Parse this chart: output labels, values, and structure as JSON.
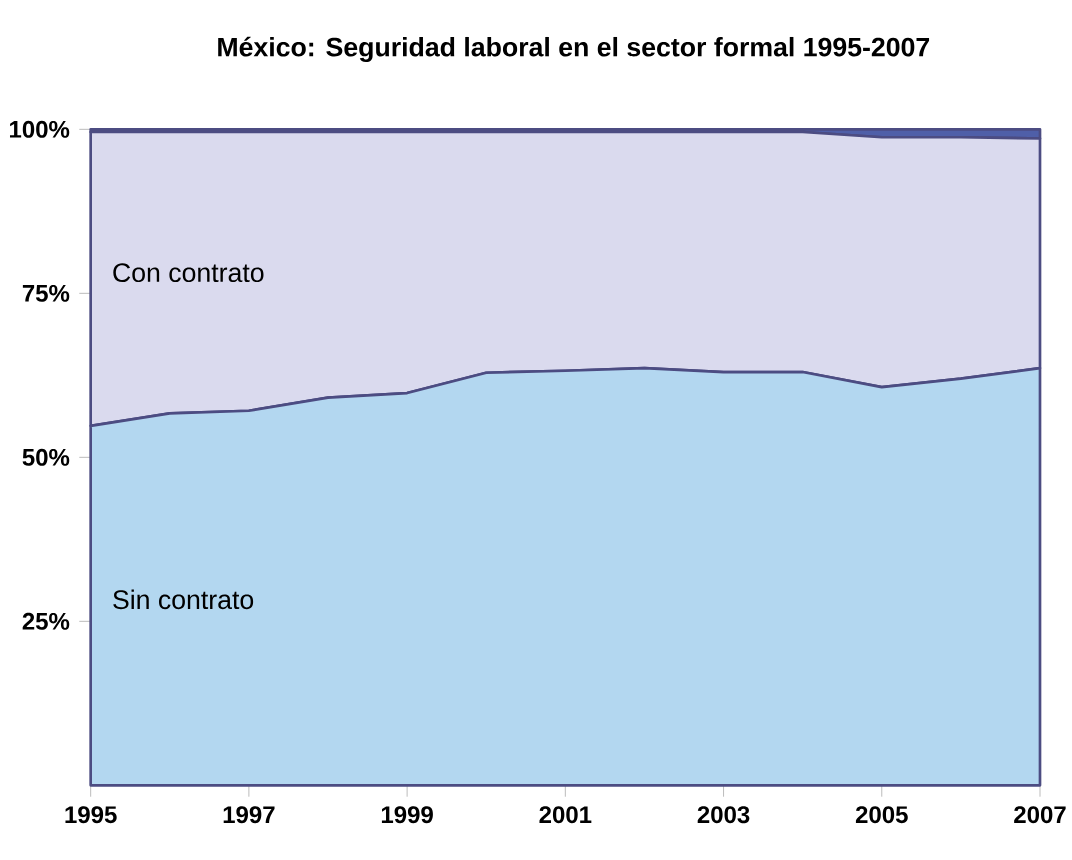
{
  "chart_data": {
    "type": "area",
    "title": "México: Seguridad laboral en el sector formal 1995-2007",
    "x": [
      1995,
      1996,
      1997,
      1998,
      1999,
      2000,
      2001,
      2002,
      2003,
      2004,
      2005,
      2006,
      2007
    ],
    "stacked": true,
    "legend": false,
    "xlim": [
      1995,
      2007
    ],
    "xticks": [
      1995,
      1997,
      1999,
      2001,
      2003,
      2005,
      2007
    ],
    "ylim": [
      0,
      100
    ],
    "yticks": [
      {
        "value": 25,
        "label": "25%"
      },
      {
        "value": 50,
        "label": "50%"
      },
      {
        "value": 75,
        "label": "75%"
      },
      {
        "value": 100,
        "label": "100%"
      }
    ],
    "series": [
      {
        "name": "Sin contrato",
        "color": "#b3d7f0",
        "values": [
          54.8,
          56.7,
          57.1,
          59.1,
          59.8,
          62.9,
          63.2,
          63.6,
          63.0,
          63.0,
          60.7,
          62.0,
          63.6
        ]
      },
      {
        "name": "Con contrato",
        "color": "#dadaee",
        "values": [
          44.8,
          42.9,
          42.5,
          40.5,
          39.8,
          36.7,
          36.4,
          36.0,
          36.6,
          36.6,
          38.1,
          36.8,
          35.0
        ]
      },
      {
        "color": "#4f5fa8",
        "values": [
          0.4,
          0.4,
          0.4,
          0.4,
          0.4,
          0.4,
          0.4,
          0.4,
          0.4,
          0.4,
          1.2,
          1.2,
          1.4
        ]
      }
    ]
  }
}
